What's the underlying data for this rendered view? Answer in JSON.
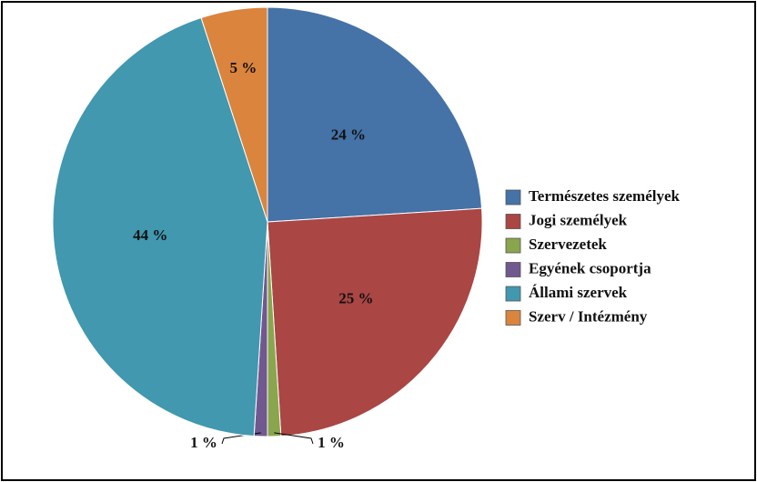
{
  "chart_data": {
    "type": "pie",
    "categories": [
      "Természetes személyek",
      "Jogi személyek",
      "Szervezetek",
      "Egyének csoportja",
      "Állami szervek",
      "Szerv / Intézmény"
    ],
    "values": [
      24,
      25,
      1,
      1,
      44,
      5
    ],
    "value_labels": [
      "24 %",
      "25 %",
      "1 %",
      "1 %",
      "44 %",
      "5 %"
    ],
    "colors": [
      "#4572a7",
      "#aa4643",
      "#89a54e",
      "#71588f",
      "#4198af",
      "#db843d"
    ],
    "legend": "right"
  }
}
